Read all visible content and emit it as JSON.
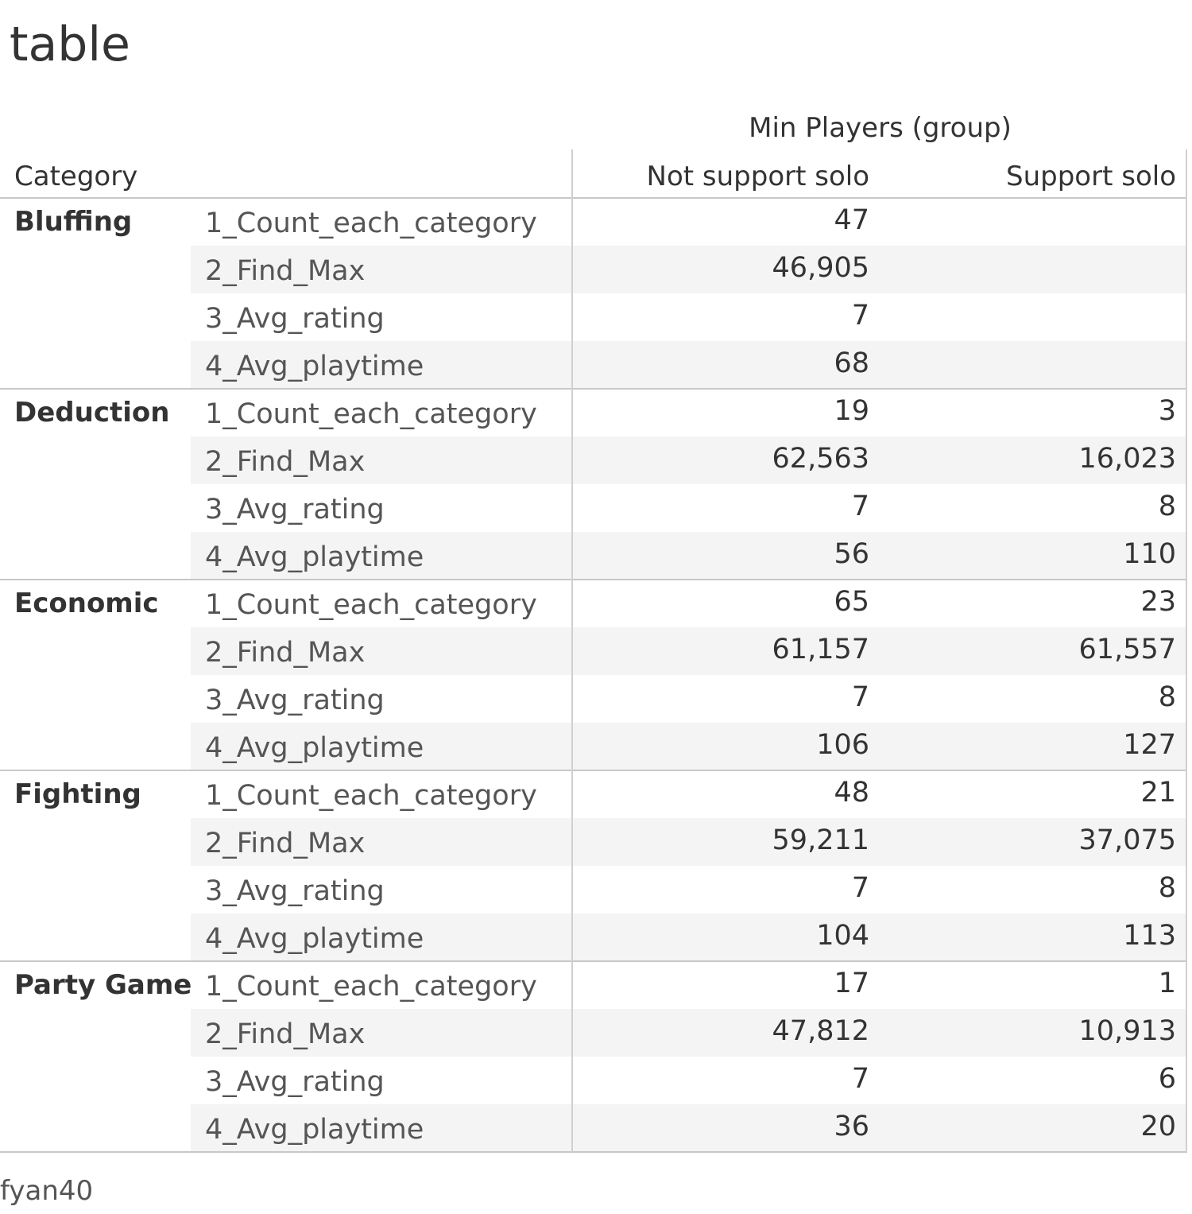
{
  "title": "table",
  "footer": "fyan40",
  "chart_data": {
    "type": "table",
    "column_group": "Min Players (group)",
    "row_header": "Category",
    "columns": [
      "Not support solo",
      "Support solo"
    ],
    "measures": [
      "1_Count_each_category",
      "2_Find_Max",
      "3_Avg_rating",
      "4_Avg_playtime"
    ],
    "rows": [
      {
        "category": "Bluffing",
        "values": [
          [
            "47",
            ""
          ],
          [
            "46,905",
            ""
          ],
          [
            "7",
            ""
          ],
          [
            "68",
            ""
          ]
        ]
      },
      {
        "category": "Deduction",
        "values": [
          [
            "19",
            "3"
          ],
          [
            "62,563",
            "16,023"
          ],
          [
            "7",
            "8"
          ],
          [
            "56",
            "110"
          ]
        ]
      },
      {
        "category": "Economic",
        "values": [
          [
            "65",
            "23"
          ],
          [
            "61,157",
            "61,557"
          ],
          [
            "7",
            "8"
          ],
          [
            "106",
            "127"
          ]
        ]
      },
      {
        "category": "Fighting",
        "values": [
          [
            "48",
            "21"
          ],
          [
            "59,211",
            "37,075"
          ],
          [
            "7",
            "8"
          ],
          [
            "104",
            "113"
          ]
        ]
      },
      {
        "category": "Party Game",
        "values": [
          [
            "17",
            "1"
          ],
          [
            "47,812",
            "10,913"
          ],
          [
            "7",
            "6"
          ],
          [
            "36",
            "20"
          ]
        ]
      }
    ]
  }
}
